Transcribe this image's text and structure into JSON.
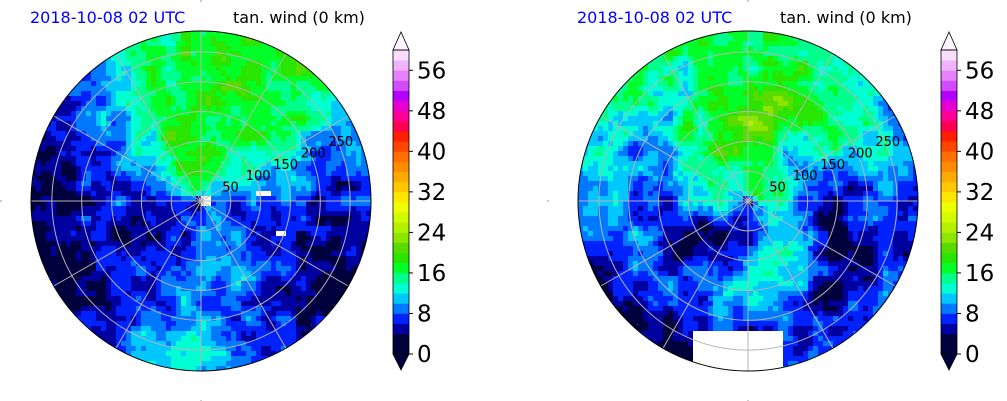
{
  "figure": {
    "panels": [
      {
        "date": "2018-10-08 02 UTC",
        "variable": "tan. wind (0 km)"
      },
      {
        "date": "2018-10-08 02 UTC",
        "variable": "tan. wind (0 km)"
      }
    ]
  },
  "chart_data": [
    {
      "type": "heatmap",
      "projection": "polar",
      "title": "2018-10-08 02 UTC",
      "subtitle": "tan. wind (0 km)",
      "radial_ticks": [
        "50",
        "100",
        "150",
        "200",
        "250"
      ],
      "radial_range": [
        0,
        285
      ],
      "grid": true,
      "colorbar": {
        "levels": [
          0,
          4,
          6,
          8,
          10,
          12,
          14,
          16,
          18,
          20,
          22,
          24,
          26,
          28,
          30,
          32,
          34,
          36,
          38,
          40,
          42,
          44,
          46,
          48,
          50,
          52,
          54,
          56,
          58,
          60
        ],
        "colors": [
          "#00003c",
          "#0000a0",
          "#0022ff",
          "#0078ff",
          "#00c8ff",
          "#00ffd2",
          "#00ff8c",
          "#00ff28",
          "#28e600",
          "#58dc00",
          "#8ce600",
          "#b4f000",
          "#d2fa00",
          "#f0ff00",
          "#ffe600",
          "#ffc800",
          "#ffaa00",
          "#ff8c00",
          "#ff6e00",
          "#ff4600",
          "#ff1e00",
          "#ff0050",
          "#ff0096",
          "#e600d2",
          "#b400ff",
          "#d24bff",
          "#e682ff",
          "#f0b4ff",
          "#fadcff"
        ],
        "tick_labels": [
          "0",
          "8",
          "16",
          "24",
          "32",
          "40",
          "48",
          "56"
        ],
        "extend": "both"
      },
      "series": [
        {
          "values": [
            [
              8,
              12,
              14,
              16,
              18,
              20,
              18,
              14,
              10,
              8,
              6,
              6,
              8,
              10,
              12,
              8
            ],
            [
              6,
              10,
              18,
              20,
              18,
              14,
              8,
              4,
              2,
              2,
              6,
              10,
              12,
              8,
              4,
              4
            ]
          ]
        }
      ]
    },
    {
      "type": "heatmap",
      "projection": "polar",
      "title": "2018-10-08 02 UTC",
      "subtitle": "tan. wind (0 km)",
      "radial_ticks": [
        "50",
        "100",
        "150",
        "200",
        "250"
      ],
      "radial_range": [
        0,
        285
      ],
      "grid": true,
      "colorbar": {
        "levels": [
          0,
          4,
          6,
          8,
          10,
          12,
          14,
          16,
          18,
          20,
          22,
          24,
          26,
          28,
          30,
          32,
          34,
          36,
          38,
          40,
          42,
          44,
          46,
          48,
          50,
          52,
          54,
          56,
          58,
          60
        ],
        "colors": [
          "#00003c",
          "#0000a0",
          "#0022ff",
          "#0078ff",
          "#00c8ff",
          "#00ffd2",
          "#00ff8c",
          "#00ff28",
          "#28e600",
          "#58dc00",
          "#8ce600",
          "#b4f000",
          "#d2fa00",
          "#f0ff00",
          "#ffe600",
          "#ffc800",
          "#ffaa00",
          "#ff8c00",
          "#ff6e00",
          "#ff4600",
          "#ff1e00",
          "#ff0050",
          "#ff0096",
          "#e600d2",
          "#b400ff",
          "#d24bff",
          "#e682ff",
          "#f0b4ff",
          "#fadcff"
        ],
        "tick_labels": [
          "0",
          "8",
          "16",
          "24",
          "32",
          "40",
          "48",
          "56"
        ],
        "extend": "both"
      },
      "series": [
        {
          "values": [
            [
              10,
              14,
              16,
              20,
              20,
              18,
              16,
              14,
              12,
              10,
              8,
              8,
              10,
              12,
              12,
              10
            ],
            [
              6,
              10,
              14,
              18,
              18,
              16,
              14,
              10,
              8,
              6,
              4,
              6,
              8,
              8,
              6,
              4
            ]
          ]
        }
      ]
    }
  ]
}
